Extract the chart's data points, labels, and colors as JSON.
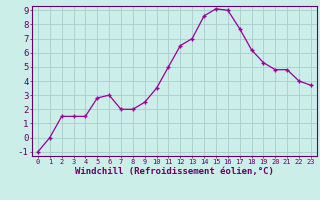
{
  "x": [
    0,
    1,
    2,
    3,
    4,
    5,
    6,
    7,
    8,
    9,
    10,
    11,
    12,
    13,
    14,
    15,
    16,
    17,
    18,
    19,
    20,
    21,
    22,
    23
  ],
  "y": [
    -1.0,
    0.0,
    1.5,
    1.5,
    1.5,
    2.8,
    3.0,
    2.0,
    2.0,
    2.5,
    3.5,
    5.0,
    6.5,
    7.0,
    8.6,
    9.1,
    9.0,
    7.7,
    6.2,
    5.3,
    4.8,
    4.8,
    4.0,
    3.7
  ],
  "line_color": "#990099",
  "marker": "+",
  "bg_color": "#cceee8",
  "grid_color": "#aacccc",
  "xlabel": "Windchill (Refroidissement éolien,°C)",
  "ylim": [
    -1,
    9
  ],
  "xlim": [
    -0.5,
    23.5
  ],
  "yticks": [
    -1,
    0,
    1,
    2,
    3,
    4,
    5,
    6,
    7,
    8,
    9
  ],
  "xticks": [
    0,
    1,
    2,
    3,
    4,
    5,
    6,
    7,
    8,
    9,
    10,
    11,
    12,
    13,
    14,
    15,
    16,
    17,
    18,
    19,
    20,
    21,
    22,
    23
  ],
  "xlabel_fontsize": 6.5,
  "tick_fontsize": 6.5,
  "axis_color": "#660066",
  "spine_color": "#660066"
}
